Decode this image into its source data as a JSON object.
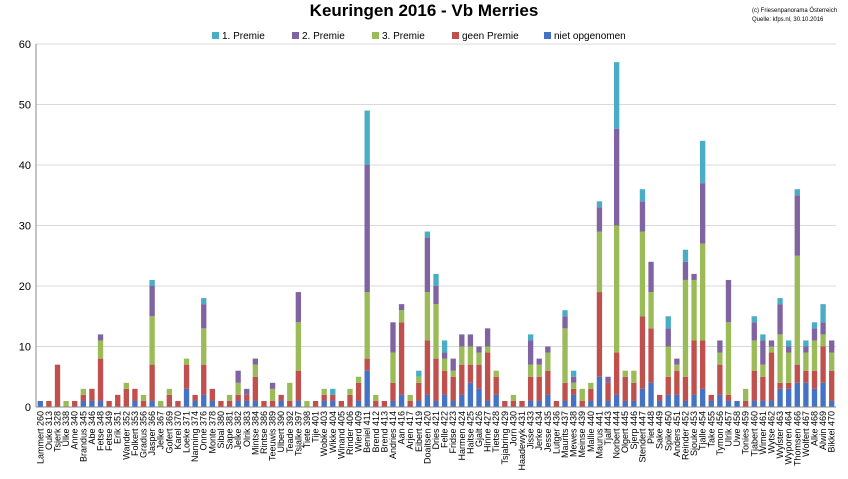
{
  "chart_data": {
    "type": "bar",
    "stacked": true,
    "title": "Keuringen 2016 - Vb Merries",
    "note_lines": [
      "(c) Friesenpanorama Österreich",
      "Quelle: kfps.nl, 30.10.2016"
    ],
    "ylim": [
      0,
      60
    ],
    "yticks": [
      0,
      10,
      20,
      30,
      40,
      50,
      60
    ],
    "grid": true,
    "legend_position": "top",
    "legend_order": [
      4,
      3,
      2,
      1,
      0
    ],
    "categories": [
      "Lammert 260",
      "Ouke 313",
      "Tsjerk 328",
      "Ulke 338",
      "Anne 340",
      "Brandus 345",
      "Abe 346",
      "Fetse 348",
      "Fetse 349",
      "Erik 351",
      "Wander 352",
      "Folkert 353",
      "Gradus 356",
      "Jasper 366",
      "Jelke 367",
      "Gofert 369",
      "Karel 370",
      "Loeke 371",
      "Nanning 374",
      "Onne 376",
      "Monte 378",
      "Sibal 380",
      "Sape 381",
      "Jelke 382",
      "Olrik 383",
      "Mintse 384",
      "Rintse 386",
      "Teeuwis 389",
      "Ulbert 390",
      "Teade 392",
      "Tsjalke 397",
      "Tiete 398",
      "Tije 401",
      "Wobke 403",
      "Wikke 404",
      "Winand 405",
      "Rinder 406",
      "Wierd 409",
      "Beniel 411",
      "Brend 412",
      "Brend 413",
      "Andries 414",
      "Aan 416",
      "Arjen 417",
      "Eibert 419",
      "Doaitsen 420",
      "Dries 421",
      "Felle 422",
      "Fridse 423",
      "Harmen 424",
      "Haitse 425",
      "Gjalt 426",
      "Hinne 427",
      "Tietse 428",
      "Tsjabring 429",
      "Jorn 430",
      "Haadewyk 431",
      "Jisse 433",
      "Jerke 434",
      "Jesse 435",
      "Lutger 436",
      "Maurits 437",
      "Mewes 438",
      "Meinse 439",
      "Mallie 440",
      "Maurus 441",
      "Tjalf 443",
      "Norbert 444",
      "Olgert 445",
      "Sjerp 446",
      "Stendert 447",
      "Piet 448",
      "Sake 449",
      "Spike 450",
      "Anders 451",
      "Reinder 452",
      "Sjouke 453",
      "Tjalle 454",
      "Take 455",
      "Tymon 456",
      "Ulrik 457",
      "Uwe 458",
      "Tonies 459",
      "Tjabert 460",
      "Wimer 461",
      "Wytse 462",
      "Wylster 463",
      "Wyporen 464",
      "Thomsen 466",
      "Wolfert 467",
      "Alke 468",
      "Alwin 469",
      "Bikkel 470"
    ],
    "series": [
      {
        "name": "niet opgenomen",
        "color": "#4472C4",
        "values": [
          1,
          0,
          0,
          0,
          0,
          1,
          1,
          1,
          0,
          0,
          0,
          1,
          0,
          1,
          0,
          0,
          0,
          3,
          1,
          2,
          1,
          0,
          0,
          1,
          1,
          1,
          0,
          0,
          1,
          0,
          1,
          0,
          0,
          1,
          1,
          0,
          0,
          1,
          6,
          0,
          0,
          1,
          2,
          0,
          1,
          2,
          1,
          2,
          1,
          2,
          4,
          3,
          1,
          2,
          0,
          0,
          0,
          1,
          1,
          2,
          0,
          1,
          2,
          0,
          1,
          5,
          1,
          2,
          1,
          1,
          3,
          4,
          1,
          2,
          2,
          1,
          2,
          3,
          1,
          2,
          1,
          1,
          0,
          1,
          1,
          1,
          3,
          3,
          4,
          4,
          3,
          4,
          1
        ]
      },
      {
        "name": "geen Premie",
        "color": "#C0504D",
        "values": [
          0,
          1,
          7,
          0,
          1,
          1,
          2,
          7,
          1,
          2,
          3,
          2,
          1,
          6,
          0,
          2,
          1,
          4,
          1,
          5,
          2,
          1,
          1,
          1,
          1,
          4,
          1,
          1,
          1,
          1,
          5,
          0,
          1,
          1,
          1,
          1,
          2,
          3,
          2,
          1,
          1,
          3,
          12,
          1,
          3,
          9,
          7,
          4,
          4,
          5,
          3,
          4,
          8,
          3,
          1,
          1,
          1,
          4,
          4,
          4,
          1,
          3,
          1,
          1,
          2,
          14,
          3,
          7,
          4,
          3,
          12,
          9,
          1,
          3,
          4,
          4,
          9,
          8,
          1,
          5,
          1,
          0,
          1,
          5,
          4,
          8,
          1,
          1,
          3,
          2,
          3,
          6,
          5
        ]
      },
      {
        "name": "3. Premie",
        "color": "#9BBB59",
        "values": [
          0,
          0,
          0,
          1,
          0,
          1,
          0,
          3,
          0,
          0,
          1,
          0,
          1,
          8,
          1,
          1,
          0,
          1,
          0,
          6,
          0,
          0,
          1,
          2,
          0,
          2,
          0,
          2,
          0,
          3,
          8,
          1,
          0,
          1,
          0,
          0,
          1,
          1,
          11,
          1,
          0,
          5,
          2,
          1,
          1,
          8,
          9,
          2,
          1,
          3,
          3,
          2,
          1,
          1,
          0,
          1,
          0,
          2,
          2,
          3,
          0,
          9,
          1,
          2,
          1,
          10,
          0,
          21,
          1,
          2,
          14,
          6,
          0,
          5,
          1,
          16,
          10,
          16,
          0,
          2,
          12,
          0,
          2,
          5,
          2,
          1,
          8,
          5,
          18,
          3,
          5,
          2,
          3
        ]
      },
      {
        "name": "2. Premie",
        "color": "#8064A2",
        "values": [
          0,
          0,
          0,
          0,
          0,
          0,
          0,
          1,
          0,
          0,
          0,
          0,
          0,
          5,
          0,
          0,
          0,
          0,
          0,
          4,
          0,
          0,
          0,
          2,
          1,
          1,
          0,
          1,
          0,
          0,
          5,
          0,
          0,
          0,
          0,
          0,
          0,
          0,
          21,
          0,
          0,
          5,
          1,
          0,
          0,
          9,
          3,
          1,
          2,
          2,
          2,
          1,
          3,
          0,
          0,
          0,
          0,
          4,
          1,
          1,
          0,
          2,
          1,
          0,
          0,
          4,
          1,
          16,
          0,
          0,
          5,
          5,
          0,
          3,
          1,
          3,
          1,
          10,
          0,
          2,
          7,
          0,
          0,
          3,
          4,
          1,
          5,
          1,
          10,
          1,
          2,
          2,
          2
        ]
      },
      {
        "name": "1. Premie",
        "color": "#4BACC6",
        "values": [
          0,
          0,
          0,
          0,
          0,
          0,
          0,
          0,
          0,
          0,
          0,
          0,
          0,
          1,
          0,
          0,
          0,
          0,
          0,
          1,
          0,
          0,
          0,
          0,
          0,
          0,
          0,
          0,
          0,
          0,
          0,
          0,
          0,
          0,
          1,
          0,
          0,
          0,
          9,
          0,
          0,
          0,
          0,
          0,
          1,
          1,
          2,
          2,
          0,
          0,
          0,
          0,
          0,
          0,
          0,
          0,
          0,
          1,
          0,
          0,
          0,
          1,
          1,
          0,
          0,
          1,
          0,
          11,
          0,
          0,
          2,
          0,
          0,
          2,
          0,
          2,
          0,
          7,
          0,
          0,
          0,
          0,
          0,
          1,
          1,
          0,
          1,
          1,
          1,
          1,
          1,
          3,
          0
        ]
      }
    ]
  }
}
